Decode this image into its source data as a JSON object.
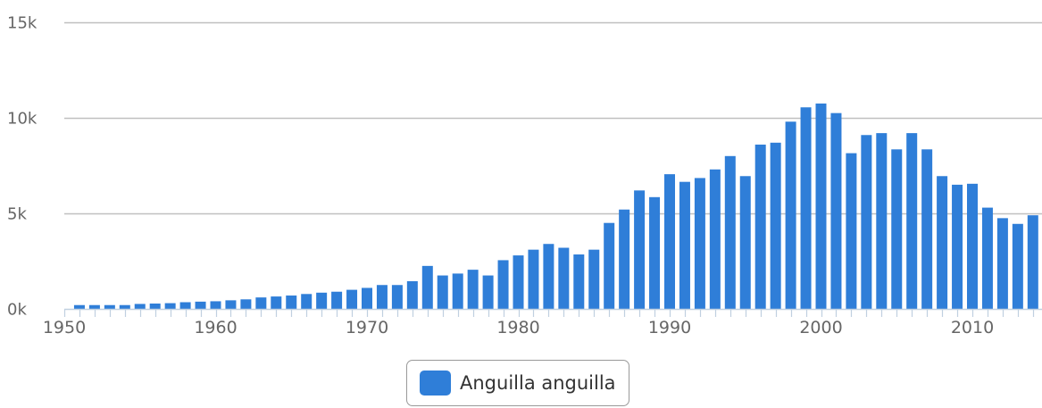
{
  "chart_data": {
    "type": "bar",
    "x": [
      1951,
      1952,
      1953,
      1954,
      1955,
      1956,
      1957,
      1958,
      1959,
      1960,
      1961,
      1962,
      1963,
      1964,
      1965,
      1966,
      1967,
      1968,
      1969,
      1970,
      1971,
      1972,
      1973,
      1974,
      1975,
      1976,
      1977,
      1978,
      1979,
      1980,
      1981,
      1982,
      1983,
      1984,
      1985,
      1986,
      1987,
      1988,
      1989,
      1990,
      1991,
      1992,
      1993,
      1994,
      1995,
      1996,
      1997,
      1998,
      1999,
      2000,
      2001,
      2002,
      2003,
      2004,
      2005,
      2006,
      2007,
      2008,
      2009,
      2010,
      2011,
      2012,
      2013,
      2014
    ],
    "series": [
      {
        "name": "Anguilla anguilla",
        "color": "#2f7ed8",
        "values": [
          200,
          200,
          200,
          200,
          260,
          280,
          300,
          350,
          380,
          400,
          450,
          500,
          600,
          650,
          700,
          780,
          850,
          900,
          1000,
          1100,
          1250,
          1250,
          1450,
          2250,
          1750,
          1850,
          2050,
          1750,
          2550,
          2800,
          3100,
          3400,
          3200,
          2850,
          3100,
          4500,
          5200,
          6200,
          5850,
          7050,
          6650,
          6850,
          7300,
          8000,
          6950,
          8600,
          8700,
          9800,
          10550,
          10750,
          10250,
          8150,
          9100,
          9200,
          8350,
          9200,
          8350,
          6950,
          6500,
          6550,
          5300,
          4750,
          4450,
          4900
        ]
      }
    ],
    "ylim": [
      0,
      15000
    ],
    "yticks": [
      0,
      5000,
      10000,
      15000
    ],
    "ytick_labels": [
      "0k",
      "5k",
      "10k",
      "15k"
    ],
    "xticks": [
      1950,
      1960,
      1970,
      1980,
      1990,
      2000,
      2010
    ],
    "xtick_labels": [
      "1950",
      "1960",
      "1970",
      "1980",
      "1990",
      "2000",
      "2010"
    ],
    "grid": true,
    "legend_position": "bottom-center"
  },
  "legend": {
    "label": "Anguilla anguilla",
    "color": "#2f7ed8"
  },
  "colors": {
    "bar": "#2f7ed8",
    "grid": "#c0c0c0",
    "axis": "#c0d0e0",
    "tick_text": "#666666"
  }
}
